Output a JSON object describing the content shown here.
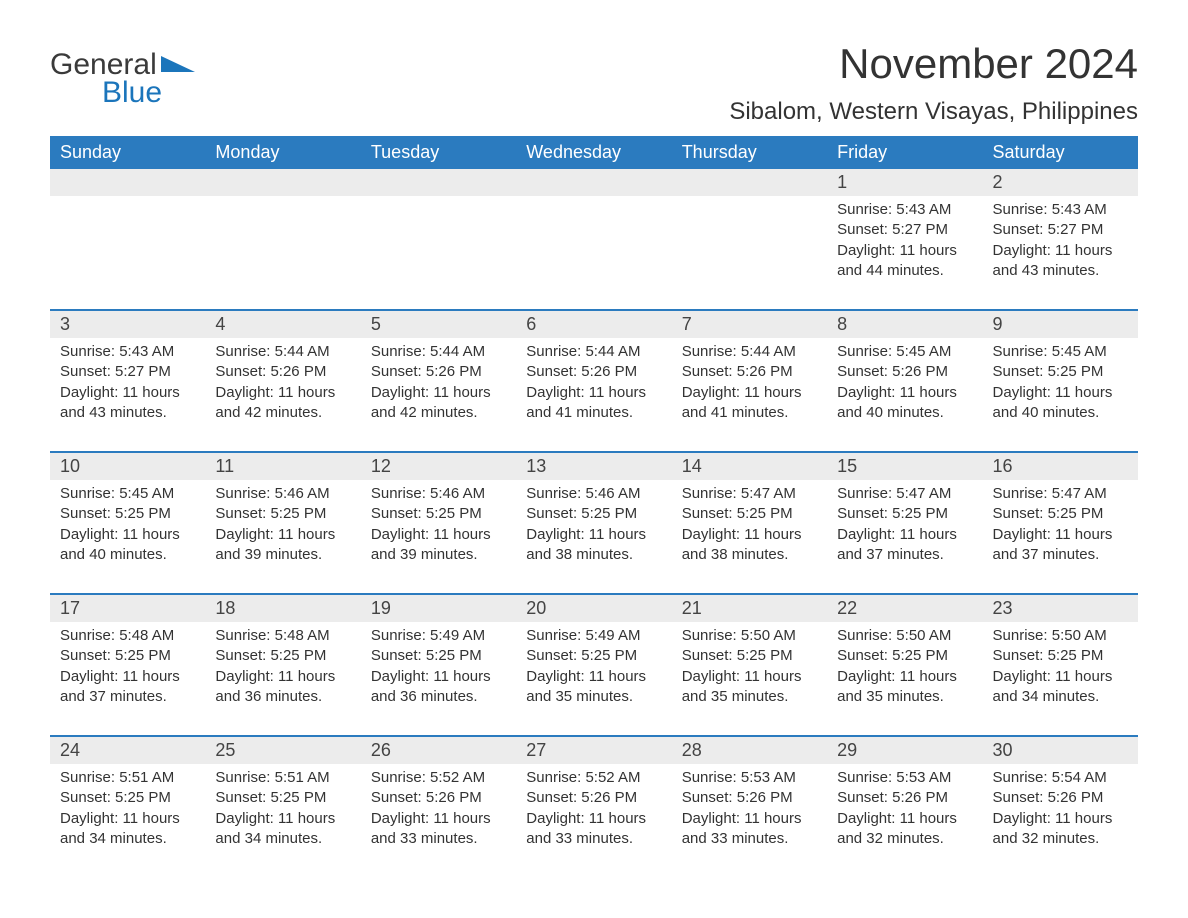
{
  "logo": {
    "word1": "General",
    "word2": "Blue",
    "text_color_main": "#3a3a3a",
    "text_color_accent": "#1b75bb",
    "shape_color": "#1b75bb"
  },
  "header": {
    "month_title": "November 2024",
    "location": "Sibalom, Western Visayas, Philippines"
  },
  "colors": {
    "header_bg": "#2b7bbf",
    "header_text": "#ffffff",
    "daynum_bg": "#ececec",
    "text": "#333333",
    "page_bg": "#ffffff",
    "week_border": "#2b7bbf"
  },
  "day_headers": [
    "Sunday",
    "Monday",
    "Tuesday",
    "Wednesday",
    "Thursday",
    "Friday",
    "Saturday"
  ],
  "weeks": [
    {
      "days": [
        null,
        null,
        null,
        null,
        null,
        {
          "num": "1",
          "sunrise": "Sunrise: 5:43 AM",
          "sunset": "Sunset: 5:27 PM",
          "daylight": "Daylight: 11 hours and 44 minutes."
        },
        {
          "num": "2",
          "sunrise": "Sunrise: 5:43 AM",
          "sunset": "Sunset: 5:27 PM",
          "daylight": "Daylight: 11 hours and 43 minutes."
        }
      ]
    },
    {
      "days": [
        {
          "num": "3",
          "sunrise": "Sunrise: 5:43 AM",
          "sunset": "Sunset: 5:27 PM",
          "daylight": "Daylight: 11 hours and 43 minutes."
        },
        {
          "num": "4",
          "sunrise": "Sunrise: 5:44 AM",
          "sunset": "Sunset: 5:26 PM",
          "daylight": "Daylight: 11 hours and 42 minutes."
        },
        {
          "num": "5",
          "sunrise": "Sunrise: 5:44 AM",
          "sunset": "Sunset: 5:26 PM",
          "daylight": "Daylight: 11 hours and 42 minutes."
        },
        {
          "num": "6",
          "sunrise": "Sunrise: 5:44 AM",
          "sunset": "Sunset: 5:26 PM",
          "daylight": "Daylight: 11 hours and 41 minutes."
        },
        {
          "num": "7",
          "sunrise": "Sunrise: 5:44 AM",
          "sunset": "Sunset: 5:26 PM",
          "daylight": "Daylight: 11 hours and 41 minutes."
        },
        {
          "num": "8",
          "sunrise": "Sunrise: 5:45 AM",
          "sunset": "Sunset: 5:26 PM",
          "daylight": "Daylight: 11 hours and 40 minutes."
        },
        {
          "num": "9",
          "sunrise": "Sunrise: 5:45 AM",
          "sunset": "Sunset: 5:25 PM",
          "daylight": "Daylight: 11 hours and 40 minutes."
        }
      ]
    },
    {
      "days": [
        {
          "num": "10",
          "sunrise": "Sunrise: 5:45 AM",
          "sunset": "Sunset: 5:25 PM",
          "daylight": "Daylight: 11 hours and 40 minutes."
        },
        {
          "num": "11",
          "sunrise": "Sunrise: 5:46 AM",
          "sunset": "Sunset: 5:25 PM",
          "daylight": "Daylight: 11 hours and 39 minutes."
        },
        {
          "num": "12",
          "sunrise": "Sunrise: 5:46 AM",
          "sunset": "Sunset: 5:25 PM",
          "daylight": "Daylight: 11 hours and 39 minutes."
        },
        {
          "num": "13",
          "sunrise": "Sunrise: 5:46 AM",
          "sunset": "Sunset: 5:25 PM",
          "daylight": "Daylight: 11 hours and 38 minutes."
        },
        {
          "num": "14",
          "sunrise": "Sunrise: 5:47 AM",
          "sunset": "Sunset: 5:25 PM",
          "daylight": "Daylight: 11 hours and 38 minutes."
        },
        {
          "num": "15",
          "sunrise": "Sunrise: 5:47 AM",
          "sunset": "Sunset: 5:25 PM",
          "daylight": "Daylight: 11 hours and 37 minutes."
        },
        {
          "num": "16",
          "sunrise": "Sunrise: 5:47 AM",
          "sunset": "Sunset: 5:25 PM",
          "daylight": "Daylight: 11 hours and 37 minutes."
        }
      ]
    },
    {
      "days": [
        {
          "num": "17",
          "sunrise": "Sunrise: 5:48 AM",
          "sunset": "Sunset: 5:25 PM",
          "daylight": "Daylight: 11 hours and 37 minutes."
        },
        {
          "num": "18",
          "sunrise": "Sunrise: 5:48 AM",
          "sunset": "Sunset: 5:25 PM",
          "daylight": "Daylight: 11 hours and 36 minutes."
        },
        {
          "num": "19",
          "sunrise": "Sunrise: 5:49 AM",
          "sunset": "Sunset: 5:25 PM",
          "daylight": "Daylight: 11 hours and 36 minutes."
        },
        {
          "num": "20",
          "sunrise": "Sunrise: 5:49 AM",
          "sunset": "Sunset: 5:25 PM",
          "daylight": "Daylight: 11 hours and 35 minutes."
        },
        {
          "num": "21",
          "sunrise": "Sunrise: 5:50 AM",
          "sunset": "Sunset: 5:25 PM",
          "daylight": "Daylight: 11 hours and 35 minutes."
        },
        {
          "num": "22",
          "sunrise": "Sunrise: 5:50 AM",
          "sunset": "Sunset: 5:25 PM",
          "daylight": "Daylight: 11 hours and 35 minutes."
        },
        {
          "num": "23",
          "sunrise": "Sunrise: 5:50 AM",
          "sunset": "Sunset: 5:25 PM",
          "daylight": "Daylight: 11 hours and 34 minutes."
        }
      ]
    },
    {
      "days": [
        {
          "num": "24",
          "sunrise": "Sunrise: 5:51 AM",
          "sunset": "Sunset: 5:25 PM",
          "daylight": "Daylight: 11 hours and 34 minutes."
        },
        {
          "num": "25",
          "sunrise": "Sunrise: 5:51 AM",
          "sunset": "Sunset: 5:25 PM",
          "daylight": "Daylight: 11 hours and 34 minutes."
        },
        {
          "num": "26",
          "sunrise": "Sunrise: 5:52 AM",
          "sunset": "Sunset: 5:26 PM",
          "daylight": "Daylight: 11 hours and 33 minutes."
        },
        {
          "num": "27",
          "sunrise": "Sunrise: 5:52 AM",
          "sunset": "Sunset: 5:26 PM",
          "daylight": "Daylight: 11 hours and 33 minutes."
        },
        {
          "num": "28",
          "sunrise": "Sunrise: 5:53 AM",
          "sunset": "Sunset: 5:26 PM",
          "daylight": "Daylight: 11 hours and 33 minutes."
        },
        {
          "num": "29",
          "sunrise": "Sunrise: 5:53 AM",
          "sunset": "Sunset: 5:26 PM",
          "daylight": "Daylight: 11 hours and 32 minutes."
        },
        {
          "num": "30",
          "sunrise": "Sunrise: 5:54 AM",
          "sunset": "Sunset: 5:26 PM",
          "daylight": "Daylight: 11 hours and 32 minutes."
        }
      ]
    }
  ]
}
